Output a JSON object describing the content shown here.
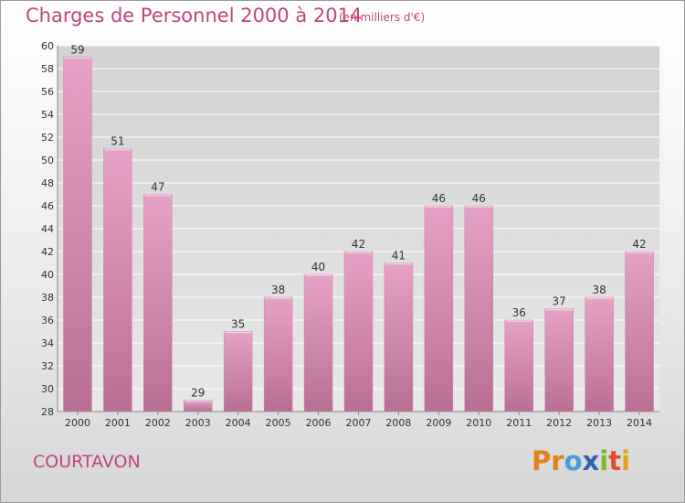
{
  "header": {
    "title": "Charges de Personnel 2000 à 2014",
    "unit_note": "(en milliers d'€)"
  },
  "footer": {
    "commune": "COURTAVON",
    "logo_text": "Proxiti",
    "logo_colors": [
      "#e3811d",
      "#e3811d",
      "#4a9ddb",
      "#2f63b5",
      "#7cbc2a",
      "#e34b2a",
      "#e3a21d"
    ]
  },
  "chart_data": {
    "type": "bar",
    "title": "Charges de Personnel 2000 à 2014",
    "subtitle": "(en milliers d'€)",
    "xlabel": "",
    "ylabel": "",
    "categories": [
      "2000",
      "2001",
      "2002",
      "2003",
      "2004",
      "2005",
      "2006",
      "2007",
      "2008",
      "2009",
      "2010",
      "2011",
      "2012",
      "2013",
      "2014"
    ],
    "values": [
      59,
      51,
      47,
      29,
      35,
      38,
      40,
      42,
      41,
      46,
      46,
      36,
      37,
      38,
      42
    ],
    "ylim": [
      28,
      60
    ],
    "yticks": [
      28,
      30,
      32,
      34,
      36,
      38,
      40,
      42,
      44,
      46,
      48,
      50,
      52,
      54,
      56,
      58,
      60
    ],
    "grid": true,
    "bar_color": "#e6a2c6",
    "bar_color_dark": "#b96f94"
  }
}
